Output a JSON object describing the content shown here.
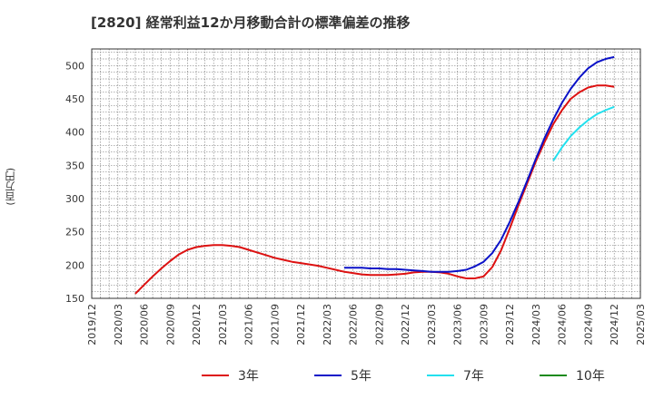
{
  "title": "[2820]  経常利益12か月移動合計の標準偏差の推移",
  "ylabel_text": "(百万円)",
  "colors": {
    "3年": "#dd1111",
    "5年": "#0a11c8",
    "7年": "#22e0ee",
    "10年": "#1a8a1a"
  },
  "chart_data": {
    "type": "line",
    "title": "[2820]  経常利益12か月移動合計の標準偏差の推移",
    "ylabel": "(百万円)",
    "xlabel": "",
    "x_ticks": [
      "2019/12",
      "2020/03",
      "2020/06",
      "2020/09",
      "2020/12",
      "2021/03",
      "2021/06",
      "2021/09",
      "2021/12",
      "2022/03",
      "2022/06",
      "2022/09",
      "2022/12",
      "2023/03",
      "2023/06",
      "2023/09",
      "2023/12",
      "2024/03",
      "2024/06",
      "2024/09",
      "2024/12",
      "2025/03"
    ],
    "y_ticks": [
      150,
      200,
      250,
      300,
      350,
      400,
      450,
      500
    ],
    "ylim": [
      150,
      525
    ],
    "grid": true,
    "legend_position": "bottom",
    "series": [
      {
        "name": "3年",
        "color": "#dd1111",
        "points": [
          [
            "2020/05",
            157
          ],
          [
            "2020/06",
            170
          ],
          [
            "2020/07",
            183
          ],
          [
            "2020/08",
            195
          ],
          [
            "2020/09",
            206
          ],
          [
            "2020/10",
            216
          ],
          [
            "2020/11",
            223
          ],
          [
            "2020/12",
            227
          ],
          [
            "2021/01",
            229
          ],
          [
            "2021/02",
            230
          ],
          [
            "2021/03",
            230
          ],
          [
            "2021/04",
            229
          ],
          [
            "2021/05",
            227
          ],
          [
            "2021/06",
            223
          ],
          [
            "2021/07",
            219
          ],
          [
            "2021/08",
            215
          ],
          [
            "2021/09",
            211
          ],
          [
            "2021/10",
            208
          ],
          [
            "2021/11",
            205
          ],
          [
            "2021/12",
            203
          ],
          [
            "2022/01",
            201
          ],
          [
            "2022/02",
            199
          ],
          [
            "2022/03",
            196
          ],
          [
            "2022/04",
            193
          ],
          [
            "2022/05",
            190
          ],
          [
            "2022/06",
            188
          ],
          [
            "2022/07",
            186
          ],
          [
            "2022/08",
            185
          ],
          [
            "2022/09",
            185
          ],
          [
            "2022/10",
            185
          ],
          [
            "2022/11",
            186
          ],
          [
            "2022/12",
            187
          ],
          [
            "2023/01",
            189
          ],
          [
            "2023/02",
            190
          ],
          [
            "2023/03",
            190
          ],
          [
            "2023/04",
            189
          ],
          [
            "2023/05",
            187
          ],
          [
            "2023/06",
            183
          ],
          [
            "2023/07",
            180
          ],
          [
            "2023/08",
            180
          ],
          [
            "2023/09",
            183
          ],
          [
            "2023/10",
            197
          ],
          [
            "2023/11",
            222
          ],
          [
            "2023/12",
            255
          ],
          [
            "2024/01",
            290
          ],
          [
            "2024/02",
            323
          ],
          [
            "2024/03",
            356
          ],
          [
            "2024/04",
            385
          ],
          [
            "2024/05",
            412
          ],
          [
            "2024/06",
            433
          ],
          [
            "2024/07",
            450
          ],
          [
            "2024/08",
            460
          ],
          [
            "2024/09",
            467
          ],
          [
            "2024/10",
            470
          ],
          [
            "2024/11",
            470
          ],
          [
            "2024/12",
            468
          ]
        ]
      },
      {
        "name": "5年",
        "color": "#0a11c8",
        "points": [
          [
            "2022/05",
            196
          ],
          [
            "2022/06",
            196
          ],
          [
            "2022/07",
            196
          ],
          [
            "2022/08",
            195
          ],
          [
            "2022/09",
            195
          ],
          [
            "2022/10",
            194
          ],
          [
            "2022/11",
            194
          ],
          [
            "2022/12",
            193
          ],
          [
            "2023/01",
            192
          ],
          [
            "2023/02",
            191
          ],
          [
            "2023/03",
            190
          ],
          [
            "2023/04",
            190
          ],
          [
            "2023/05",
            190
          ],
          [
            "2023/06",
            191
          ],
          [
            "2023/07",
            193
          ],
          [
            "2023/08",
            198
          ],
          [
            "2023/09",
            205
          ],
          [
            "2023/10",
            218
          ],
          [
            "2023/11",
            238
          ],
          [
            "2023/12",
            265
          ],
          [
            "2024/01",
            295
          ],
          [
            "2024/02",
            327
          ],
          [
            "2024/03",
            360
          ],
          [
            "2024/04",
            391
          ],
          [
            "2024/05",
            419
          ],
          [
            "2024/06",
            444
          ],
          [
            "2024/07",
            465
          ],
          [
            "2024/08",
            482
          ],
          [
            "2024/09",
            496
          ],
          [
            "2024/10",
            505
          ],
          [
            "2024/11",
            510
          ],
          [
            "2024/12",
            513
          ]
        ]
      },
      {
        "name": "7年",
        "color": "#22e0ee",
        "points": [
          [
            "2024/05",
            357
          ],
          [
            "2024/06",
            377
          ],
          [
            "2024/07",
            394
          ],
          [
            "2024/08",
            407
          ],
          [
            "2024/09",
            418
          ],
          [
            "2024/10",
            427
          ],
          [
            "2024/11",
            433
          ],
          [
            "2024/12",
            438
          ]
        ]
      },
      {
        "name": "10年",
        "color": "#1a8a1a",
        "points": []
      }
    ]
  }
}
